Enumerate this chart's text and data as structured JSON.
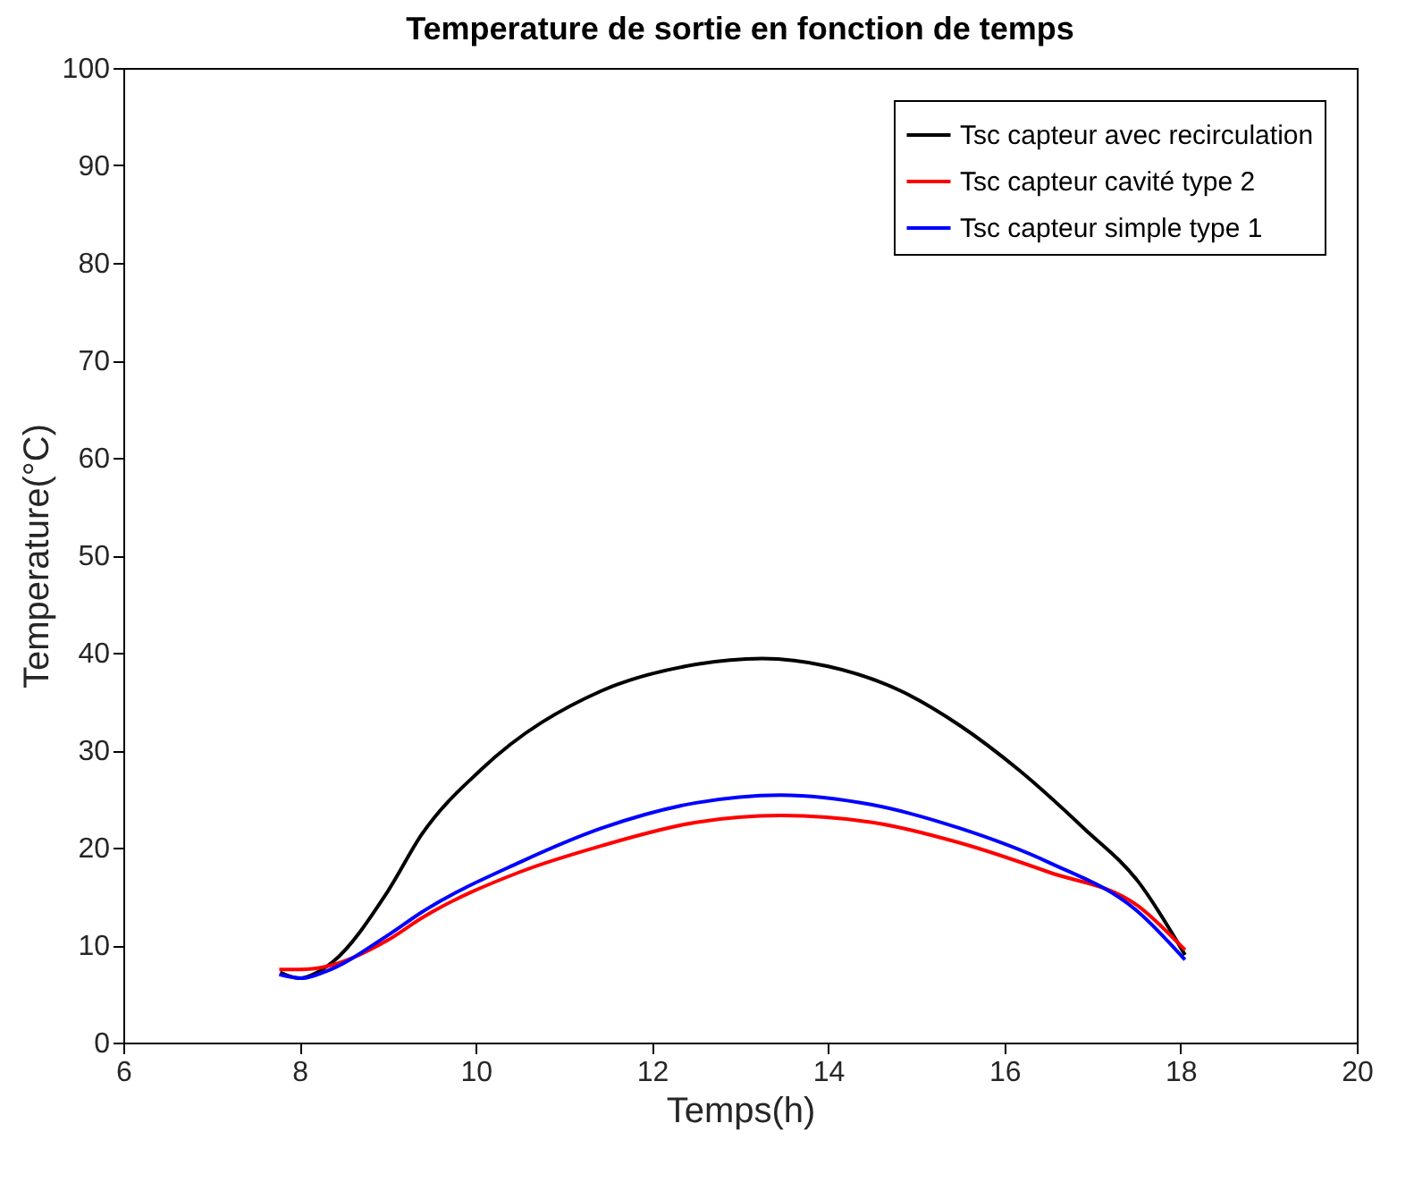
{
  "chart_data": {
    "type": "line",
    "title": "Temperature de sortie en fonction de temps",
    "xlabel": "Temps(h)",
    "ylabel": "Temperature(°C)",
    "xlim": [
      6,
      20
    ],
    "ylim": [
      0,
      100
    ],
    "xticks": [
      6,
      8,
      10,
      12,
      14,
      16,
      18,
      20
    ],
    "yticks": [
      0,
      10,
      20,
      30,
      40,
      50,
      60,
      70,
      80,
      90,
      100
    ],
    "grid": false,
    "legend": "top right",
    "line_style": "solid",
    "series": [
      {
        "name": "Tsc capteur avec recirculation",
        "color": "#000000",
        "x": [
          7.78,
          8.0,
          8.2,
          8.38,
          9.0,
          9.39,
          10.06,
          11.43,
          12.5,
          13.25,
          14.0,
          14.82,
          15.5,
          16.16,
          16.9,
          17.52,
          18.05
        ],
        "values": [
          7.2,
          6.6,
          7.2,
          8.3,
          15.5,
          21.4,
          28,
          36.1,
          38.8,
          39.4,
          38.6,
          36.1,
          32.5,
          28,
          22,
          16.5,
          9
        ]
      },
      {
        "name": "Tsc capteur cavité type 2",
        "color": "#ff0000",
        "x": [
          7.77,
          8.0,
          8.3,
          9.0,
          9.39,
          10.5,
          11.43,
          12.5,
          13.46,
          14.5,
          15.49,
          16.5,
          17.52,
          18.05
        ],
        "values": [
          7.5,
          7.5,
          7.8,
          10.5,
          12.8,
          17.5,
          20.2,
          22.6,
          23.3,
          22.6,
          20.5,
          17.5,
          14,
          9.5
        ]
      },
      {
        "name": "Tsc capteur simple type 1",
        "color": "#0000ff",
        "x": [
          7.77,
          8.03,
          8.3,
          9.0,
          9.39,
          10.5,
          11.43,
          12.5,
          13.46,
          14.5,
          15.49,
          16.5,
          17.52,
          18.05
        ],
        "values": [
          7.0,
          6.6,
          7.3,
          11,
          13.4,
          18.5,
          22,
          24.6,
          25.4,
          24.4,
          22,
          18.5,
          13.4,
          8.5
        ]
      }
    ]
  }
}
